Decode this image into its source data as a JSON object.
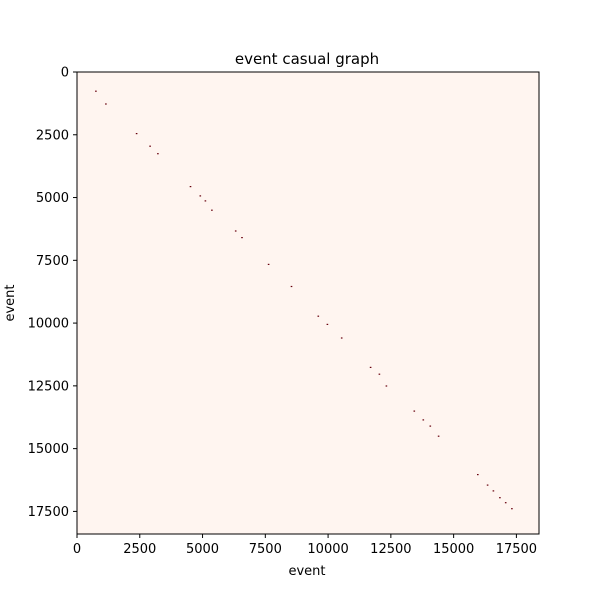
{
  "chart_data": {
    "type": "heatmap",
    "title": "event casual graph",
    "xlabel": "event",
    "ylabel": "event",
    "xlim": [
      0,
      18400
    ],
    "ylim": [
      18400,
      0
    ],
    "xticks": [
      0,
      2500,
      5000,
      7500,
      10000,
      12500,
      15000,
      17500
    ],
    "yticks": [
      0,
      2500,
      5000,
      7500,
      10000,
      12500,
      15000,
      17500
    ],
    "grid": false,
    "legend": "none",
    "colors": {
      "background": "#fff5f0",
      "cell": "#67000d",
      "frame": "#000000"
    },
    "cells": [
      {
        "x": 760,
        "y": 760
      },
      {
        "x": 1160,
        "y": 1270
      },
      {
        "x": 2380,
        "y": 2450
      },
      {
        "x": 2920,
        "y": 2950
      },
      {
        "x": 3230,
        "y": 3250
      },
      {
        "x": 4530,
        "y": 4560
      },
      {
        "x": 4920,
        "y": 4930
      },
      {
        "x": 5120,
        "y": 5130
      },
      {
        "x": 5380,
        "y": 5500
      },
      {
        "x": 6330,
        "y": 6330
      },
      {
        "x": 6580,
        "y": 6590
      },
      {
        "x": 7640,
        "y": 7660
      },
      {
        "x": 8550,
        "y": 8540
      },
      {
        "x": 9620,
        "y": 9720
      },
      {
        "x": 9980,
        "y": 10050
      },
      {
        "x": 10550,
        "y": 10590
      },
      {
        "x": 11700,
        "y": 11760
      },
      {
        "x": 12050,
        "y": 12030
      },
      {
        "x": 12330,
        "y": 12500
      },
      {
        "x": 13440,
        "y": 13500
      },
      {
        "x": 13800,
        "y": 13850
      },
      {
        "x": 14080,
        "y": 14100
      },
      {
        "x": 14410,
        "y": 14500
      },
      {
        "x": 15970,
        "y": 16030
      },
      {
        "x": 16360,
        "y": 16450
      },
      {
        "x": 16590,
        "y": 16680
      },
      {
        "x": 16850,
        "y": 16950
      },
      {
        "x": 17080,
        "y": 17150
      },
      {
        "x": 17330,
        "y": 17390
      }
    ]
  }
}
